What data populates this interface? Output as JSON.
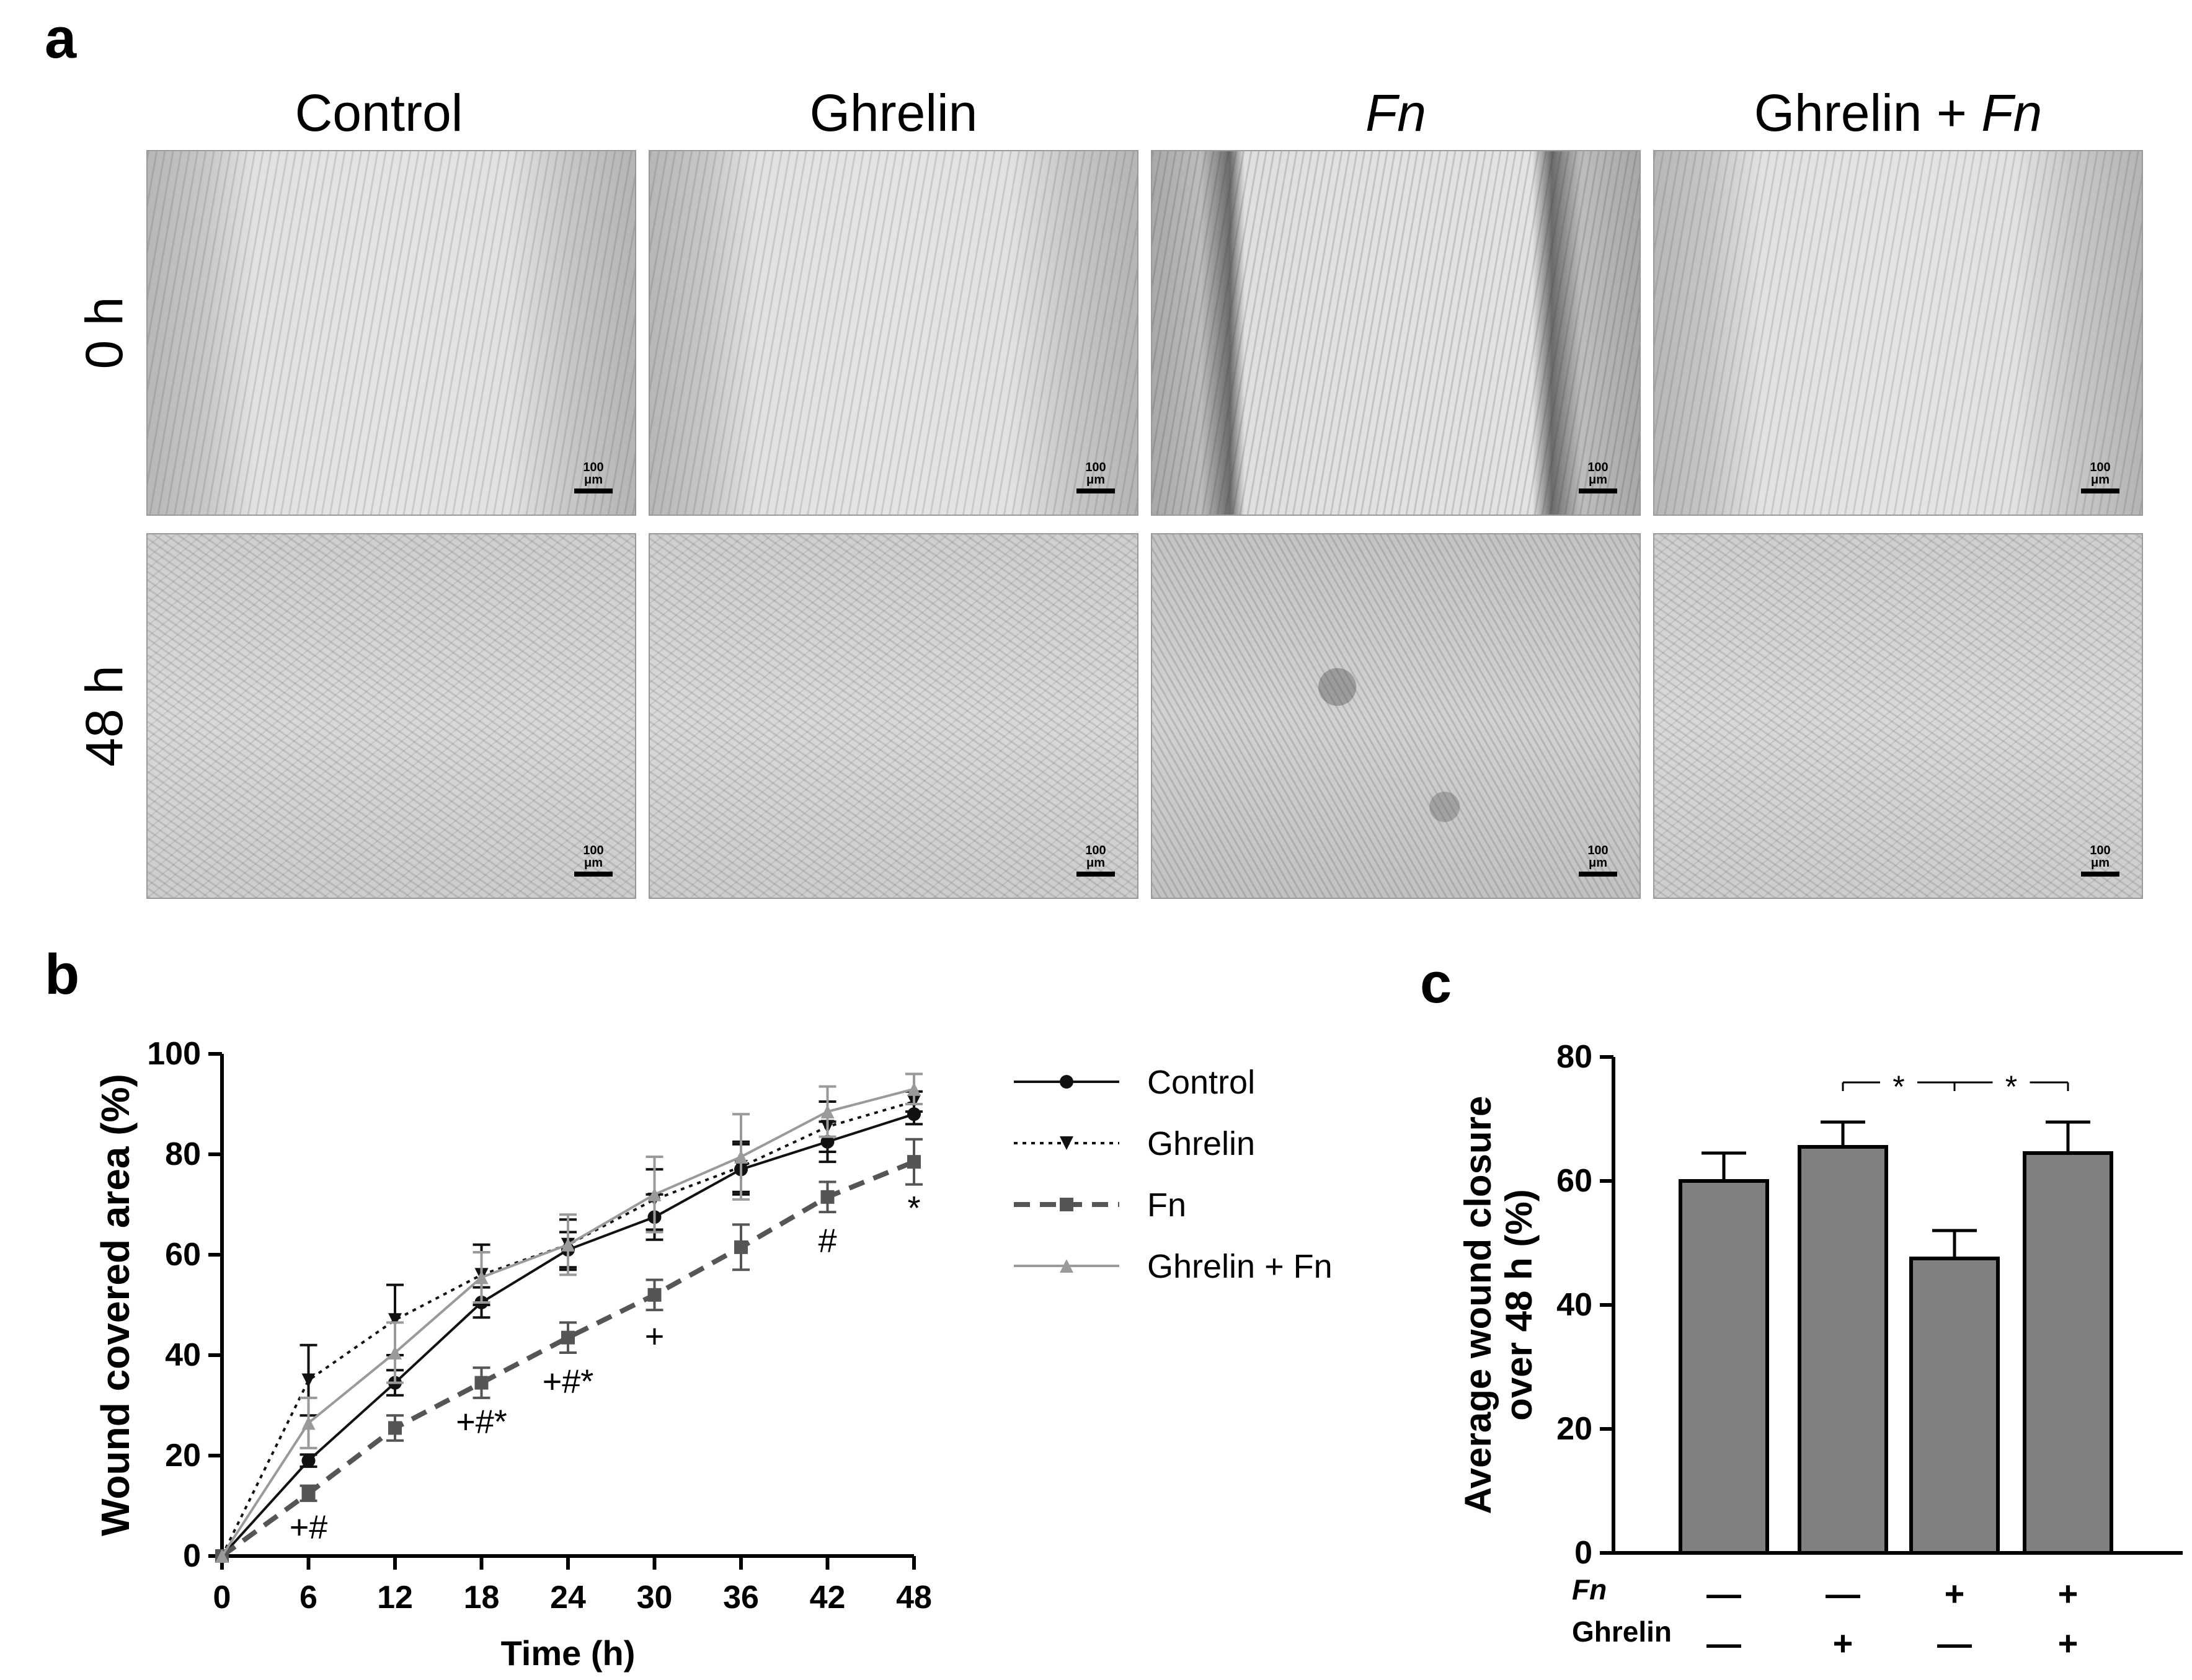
{
  "panel_a": {
    "letter": "a",
    "columns": [
      {
        "key": "control",
        "label": "Control",
        "italic": false
      },
      {
        "key": "ghrelin",
        "label": "Ghrelin",
        "italic": false
      },
      {
        "key": "fn",
        "label": "Fn",
        "italic": true
      },
      {
        "key": "ghrelin-fn",
        "prefix": "Ghrelin + ",
        "italic_part": "Fn"
      }
    ],
    "rows": [
      {
        "key": "0h",
        "label": "0 h"
      },
      {
        "key": "48h",
        "label": "48 h"
      }
    ],
    "scale_bar": "100 μm"
  },
  "chart_data": [
    {
      "panel": "b",
      "type": "line",
      "ylabel": "Wound covered area (%)",
      "xlabel": "Time (h)",
      "xlim": [
        0,
        48
      ],
      "ylim": [
        0,
        100
      ],
      "x": [
        0,
        6,
        12,
        18,
        24,
        30,
        36,
        42,
        48
      ],
      "xticks": [
        "0",
        "6",
        "12",
        "18",
        "24",
        "30",
        "36",
        "42",
        "48"
      ],
      "yticks": [
        "0",
        "20",
        "40",
        "60",
        "80",
        "100"
      ],
      "legend_position": "right",
      "series": [
        {
          "name": "Control",
          "style": "solid",
          "color": "#111111",
          "marker": "circle",
          "values": [
            0,
            19,
            34.5,
            50.5,
            61,
            67.5,
            77,
            82.5,
            88
          ],
          "errors": [
            0,
            1.2,
            2.5,
            3,
            3.5,
            4.5,
            5,
            4,
            2
          ]
        },
        {
          "name": "Ghrelin",
          "style": "dotted",
          "color": "#111111",
          "marker": "triangle-down",
          "values": [
            0,
            35,
            47,
            56,
            62,
            71,
            77.5,
            85.5,
            90.5
          ],
          "errors": [
            0,
            7,
            7,
            6,
            5,
            6,
            5,
            5,
            2
          ]
        },
        {
          "name": "Fn",
          "style": "dashed",
          "color": "#555555",
          "marker": "square",
          "values": [
            0,
            12.5,
            25.5,
            34.5,
            43.5,
            52,
            61.5,
            71.5,
            78.5
          ],
          "errors": [
            0,
            1.5,
            2.5,
            3,
            3,
            3,
            4.5,
            3,
            4.5
          ]
        },
        {
          "name": "Ghrelin + Fn",
          "style": "solid",
          "color": "#9a9a9a",
          "marker": "triangle-up",
          "values": [
            0,
            26.5,
            40.5,
            55.5,
            62,
            72,
            79.5,
            88.5,
            93
          ],
          "errors": [
            0,
            5,
            6,
            5,
            6,
            7.5,
            8.5,
            5,
            3
          ]
        }
      ],
      "annotations": [
        {
          "x": 6,
          "y": 6,
          "text": "+#"
        },
        {
          "x": 18,
          "y": 27,
          "text": "+#*"
        },
        {
          "x": 24,
          "y": 35,
          "text": "+#*"
        },
        {
          "x": 30,
          "y": 44,
          "text": "+"
        },
        {
          "x": 42,
          "y": 63,
          "text": "#"
        },
        {
          "x": 48,
          "y": 69.5,
          "text": "*"
        }
      ]
    },
    {
      "panel": "c",
      "type": "bar",
      "ylabel": [
        "Average wound closure",
        "over 48 h (%)"
      ],
      "ylim": [
        0,
        80
      ],
      "yticks": [
        "0",
        "20",
        "40",
        "60",
        "80"
      ],
      "bar_color": "#808080",
      "categories": [
        {
          "fn": "—",
          "ghrelin": "—"
        },
        {
          "fn": "—",
          "ghrelin": "+"
        },
        {
          "fn": "+",
          "ghrelin": "—"
        },
        {
          "fn": "+",
          "ghrelin": "+"
        }
      ],
      "row_labels": {
        "fn": "Fn",
        "ghrelin": "Ghrelin"
      },
      "values": [
        60,
        65.5,
        47.5,
        64.5
      ],
      "errors": [
        4.5,
        4,
        4.5,
        5
      ],
      "significance": [
        {
          "from": 1,
          "to": 2,
          "label": "*"
        },
        {
          "from": 2,
          "to": 3,
          "label": "*"
        }
      ]
    }
  ]
}
